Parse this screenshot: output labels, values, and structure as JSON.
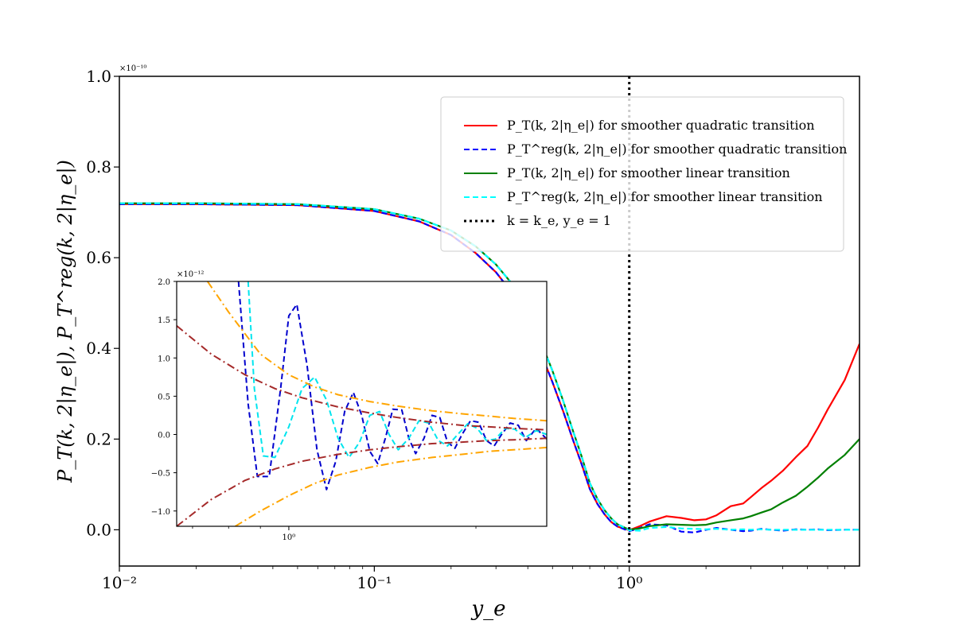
{
  "chart_data": {
    "type": "line",
    "title": "",
    "xlabel": "y_e",
    "ylabel": "P_T(k, 2|η_e|), P_T^reg(k, 2|η_e|)",
    "xscale": "log",
    "xlim": [
      0.01,
      8.0
    ],
    "ylim": [
      -0.08,
      1.0
    ],
    "y_multiplier": "×10⁻¹⁰",
    "x_ticks": [
      0.01,
      0.1,
      1.0
    ],
    "x_tick_labels": [
      "10⁻²",
      "10⁻¹",
      "10⁰"
    ],
    "y_ticks": [
      0.0,
      0.2,
      0.4,
      0.6,
      0.8,
      1.0
    ],
    "y_tick_labels": [
      "0.0",
      "0.2",
      "0.4",
      "0.6",
      "0.8",
      "1.0"
    ],
    "grid": false,
    "legend_position": "top-right",
    "series": [
      {
        "name": "P_T(k, 2|η_e|) for smoother quadratic transition",
        "color": "#ff0000",
        "style": "solid",
        "x": [
          0.01,
          0.02,
          0.05,
          0.1,
          0.15,
          0.2,
          0.25,
          0.3,
          0.35,
          0.4,
          0.45,
          0.5,
          0.55,
          0.6,
          0.65,
          0.7,
          0.75,
          0.8,
          0.85,
          0.9,
          1.0,
          1.1,
          1.2,
          1.4,
          1.6,
          1.8,
          2.0,
          2.2,
          2.5,
          2.8,
          3.0,
          3.3,
          3.6,
          4.0,
          4.5,
          5.0,
          5.5,
          6.0,
          7.0,
          8.0
        ],
        "y": [
          0.718,
          0.718,
          0.716,
          0.703,
          0.68,
          0.65,
          0.61,
          0.568,
          0.52,
          0.46,
          0.39,
          0.325,
          0.262,
          0.2,
          0.145,
          0.09,
          0.057,
          0.034,
          0.017,
          0.007,
          -0.001,
          0.008,
          0.018,
          0.03,
          0.026,
          0.021,
          0.023,
          0.032,
          0.052,
          0.058,
          0.072,
          0.092,
          0.108,
          0.13,
          0.16,
          0.185,
          0.225,
          0.265,
          0.33,
          0.41
        ]
      },
      {
        "name": "P_T^reg(k, 2|η_e|) for smoother quadratic transition",
        "color": "#0000ff",
        "style": "dashed",
        "x": [
          0.01,
          0.02,
          0.05,
          0.1,
          0.15,
          0.2,
          0.25,
          0.3,
          0.35,
          0.4,
          0.45,
          0.5,
          0.55,
          0.6,
          0.65,
          0.7,
          0.75,
          0.8,
          0.85,
          0.9,
          1.0,
          1.1,
          1.2,
          1.4,
          1.6,
          1.8,
          2.0,
          2.2,
          2.5,
          2.8,
          3.0,
          3.3,
          3.6,
          4.0,
          4.5,
          5.0,
          5.5,
          6.0,
          7.0,
          8.0
        ],
        "y": [
          0.718,
          0.718,
          0.716,
          0.703,
          0.68,
          0.65,
          0.61,
          0.568,
          0.52,
          0.46,
          0.39,
          0.325,
          0.262,
          0.2,
          0.145,
          0.09,
          0.057,
          0.034,
          0.017,
          0.007,
          -0.003,
          0.004,
          0.012,
          0.01,
          -0.004,
          -0.006,
          0.0,
          0.004,
          0.0,
          -0.003,
          -0.002,
          0.002,
          0.0,
          -0.002,
          0.001,
          0.0,
          0.001,
          -0.001,
          0.0,
          0.0
        ]
      },
      {
        "name": "P_T(k, 2|η_e|) for smoother linear transition",
        "color": "#008000",
        "style": "solid",
        "x": [
          0.01,
          0.02,
          0.05,
          0.1,
          0.15,
          0.2,
          0.25,
          0.3,
          0.35,
          0.4,
          0.45,
          0.5,
          0.55,
          0.6,
          0.65,
          0.7,
          0.75,
          0.8,
          0.85,
          0.9,
          1.0,
          1.1,
          1.2,
          1.4,
          1.6,
          1.8,
          2.0,
          2.2,
          2.5,
          2.8,
          3.0,
          3.3,
          3.6,
          4.0,
          4.5,
          5.0,
          5.5,
          6.0,
          7.0,
          8.0
        ],
        "y": [
          0.72,
          0.72,
          0.718,
          0.707,
          0.686,
          0.66,
          0.625,
          0.585,
          0.54,
          0.482,
          0.415,
          0.35,
          0.285,
          0.22,
          0.162,
          0.103,
          0.068,
          0.043,
          0.025,
          0.012,
          0.0,
          0.003,
          0.008,
          0.012,
          0.011,
          0.01,
          0.011,
          0.016,
          0.021,
          0.025,
          0.03,
          0.038,
          0.045,
          0.06,
          0.075,
          0.095,
          0.115,
          0.135,
          0.165,
          0.2
        ]
      },
      {
        "name": "P_T^reg(k, 2|η_e|) for smoother linear transition",
        "color": "#00ffff",
        "style": "dashed",
        "x": [
          0.01,
          0.02,
          0.05,
          0.1,
          0.15,
          0.2,
          0.25,
          0.3,
          0.35,
          0.4,
          0.45,
          0.5,
          0.55,
          0.6,
          0.65,
          0.7,
          0.75,
          0.8,
          0.85,
          0.9,
          1.0,
          1.1,
          1.2,
          1.4,
          1.6,
          1.8,
          2.0,
          2.2,
          2.5,
          2.8,
          3.0,
          3.3,
          3.6,
          4.0,
          4.5,
          5.0,
          5.5,
          6.0,
          7.0,
          8.0
        ],
        "y": [
          0.72,
          0.72,
          0.718,
          0.707,
          0.686,
          0.66,
          0.625,
          0.585,
          0.54,
          0.482,
          0.415,
          0.35,
          0.285,
          0.22,
          0.162,
          0.103,
          0.068,
          0.043,
          0.025,
          0.012,
          -0.001,
          -0.002,
          0.004,
          0.006,
          0.003,
          0.002,
          0.001,
          0.002,
          0.0,
          0.001,
          0.0,
          0.001,
          0.0,
          0.0,
          0.0,
          0.0,
          0.0,
          0.0,
          0.0,
          0.0
        ]
      }
    ],
    "vline": {
      "name": "k = k_e, y_e = 1",
      "x": 1.0,
      "color": "#000000",
      "style": "dotted"
    },
    "inset": {
      "type": "line",
      "xscale": "log",
      "xlim": [
        0.66,
        2.6
      ],
      "ylim": [
        -1.2,
        2.0
      ],
      "y_multiplier": "×10⁻¹²",
      "x_ticks": [
        1.0
      ],
      "x_tick_labels": [
        "10⁰"
      ],
      "y_ticks": [
        -1.0,
        -0.5,
        0.0,
        0.5,
        1.0,
        1.5,
        2.0
      ],
      "y_tick_labels": [
        "−1.0",
        "−0.5",
        "0.0",
        "0.5",
        "1.0",
        "1.5",
        "2.0"
      ],
      "series": [
        {
          "name": "",
          "color": "#0000cd",
          "style": "dashed",
          "x": [
            0.83,
            0.86,
            0.89,
            0.93,
            0.97,
            1.0,
            1.03,
            1.07,
            1.11,
            1.15,
            1.19,
            1.23,
            1.27,
            1.31,
            1.35,
            1.39,
            1.43,
            1.47,
            1.52,
            1.56,
            1.6,
            1.65,
            1.7,
            1.75,
            1.8,
            1.85,
            1.9,
            1.96,
            2.02,
            2.08,
            2.14,
            2.2,
            2.27,
            2.34,
            2.41,
            2.5,
            2.6
          ],
          "y": [
            2.0,
            0.4,
            -0.55,
            -0.55,
            0.6,
            1.55,
            1.7,
            0.9,
            -0.2,
            -0.72,
            -0.35,
            0.3,
            0.55,
            0.25,
            -0.22,
            -0.38,
            -0.05,
            0.33,
            0.32,
            -0.05,
            -0.25,
            -0.05,
            0.25,
            0.22,
            -0.1,
            -0.18,
            0.0,
            0.18,
            0.16,
            -0.08,
            -0.15,
            0.0,
            0.15,
            0.12,
            -0.08,
            0.08,
            -0.06
          ]
        },
        {
          "name": "",
          "color": "#00e5ee",
          "style": "dashed",
          "x": [
            0.86,
            0.88,
            0.91,
            0.95,
            1.0,
            1.05,
            1.1,
            1.15,
            1.2,
            1.25,
            1.3,
            1.35,
            1.4,
            1.45,
            1.5,
            1.56,
            1.62,
            1.68,
            1.74,
            1.8,
            1.87,
            1.94,
            2.01,
            2.08,
            2.15,
            2.23,
            2.31,
            2.4,
            2.5,
            2.6
          ],
          "y": [
            2.0,
            0.6,
            -0.28,
            -0.3,
            0.1,
            0.6,
            0.75,
            0.45,
            -0.05,
            -0.3,
            -0.1,
            0.25,
            0.3,
            0.0,
            -0.2,
            -0.05,
            0.18,
            0.15,
            -0.08,
            -0.15,
            0.0,
            0.14,
            0.08,
            -0.08,
            -0.06,
            0.08,
            0.07,
            -0.04,
            0.05,
            0.0
          ]
        },
        {
          "name": "",
          "color": "#ffa500",
          "style": "dashdot",
          "x": [
            0.74,
            0.8,
            0.9,
            1.0,
            1.1,
            1.2,
            1.35,
            1.5,
            1.7,
            1.9,
            2.1,
            2.3,
            2.6
          ],
          "y": [
            2.0,
            1.6,
            1.05,
            0.78,
            0.62,
            0.52,
            0.43,
            0.37,
            0.31,
            0.27,
            0.24,
            0.21,
            0.18
          ]
        },
        {
          "name": "",
          "color": "#ffa500",
          "style": "dashdot",
          "x": [
            0.82,
            0.9,
            1.0,
            1.1,
            1.2,
            1.35,
            1.5,
            1.7,
            1.9,
            2.1,
            2.3,
            2.6
          ],
          "y": [
            -1.2,
            -1.0,
            -0.8,
            -0.64,
            -0.53,
            -0.43,
            -0.36,
            -0.3,
            -0.26,
            -0.22,
            -0.2,
            -0.17
          ]
        },
        {
          "name": "",
          "color": "#a52a2a",
          "style": "dashdot",
          "x": [
            0.66,
            0.75,
            0.85,
            0.95,
            1.05,
            1.2,
            1.35,
            1.5,
            1.7,
            1.9,
            2.1,
            2.3,
            2.6
          ],
          "y": [
            1.42,
            1.05,
            0.78,
            0.6,
            0.48,
            0.36,
            0.28,
            0.22,
            0.16,
            0.12,
            0.1,
            0.08,
            0.06
          ]
        },
        {
          "name": "",
          "color": "#a52a2a",
          "style": "dashdot",
          "x": [
            0.66,
            0.75,
            0.85,
            0.95,
            1.05,
            1.2,
            1.35,
            1.5,
            1.7,
            1.9,
            2.1,
            2.3,
            2.6
          ],
          "y": [
            -1.2,
            -0.85,
            -0.6,
            -0.45,
            -0.35,
            -0.26,
            -0.2,
            -0.16,
            -0.12,
            -0.1,
            -0.08,
            -0.07,
            -0.05
          ]
        }
      ]
    }
  }
}
